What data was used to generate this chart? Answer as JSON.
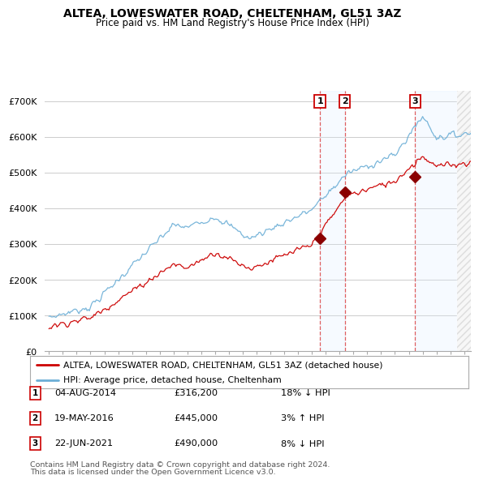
{
  "title": "ALTEA, LOWESWATER ROAD, CHELTENHAM, GL51 3AZ",
  "subtitle": "Price paid vs. HM Land Registry's House Price Index (HPI)",
  "ylabel_ticks": [
    "£0",
    "£100K",
    "£200K",
    "£300K",
    "£400K",
    "£500K",
    "£600K",
    "£700K"
  ],
  "ytick_values": [
    0,
    100000,
    200000,
    300000,
    400000,
    500000,
    600000,
    700000
  ],
  "ylim": [
    0,
    730000
  ],
  "xlim_start": 1994.7,
  "xlim_end": 2025.5,
  "legend_line1": "ALTEA, LOWESWATER ROAD, CHELTENHAM, GL51 3AZ (detached house)",
  "legend_line2": "HPI: Average price, detached house, Cheltenham",
  "transactions": [
    {
      "num": 1,
      "date": "04-AUG-2014",
      "price": 316200,
      "year": 2014.58,
      "pct": "18%",
      "dir": "↓"
    },
    {
      "num": 2,
      "date": "19-MAY-2016",
      "price": 445000,
      "year": 2016.38,
      "pct": "3%",
      "dir": "↑"
    },
    {
      "num": 3,
      "date": "22-JUN-2021",
      "price": 490000,
      "year": 2021.46,
      "pct": "8%",
      "dir": "↓"
    }
  ],
  "footer1": "Contains HM Land Registry data © Crown copyright and database right 2024.",
  "footer2": "This data is licensed under the Open Government Licence v3.0.",
  "hpi_color": "#6baed6",
  "price_color": "#cc0000",
  "marker_color": "#8b0000",
  "vline_color": "#e06060",
  "shade_color": "#ddeeff",
  "background_color": "#ffffff",
  "grid_color": "#cccccc"
}
